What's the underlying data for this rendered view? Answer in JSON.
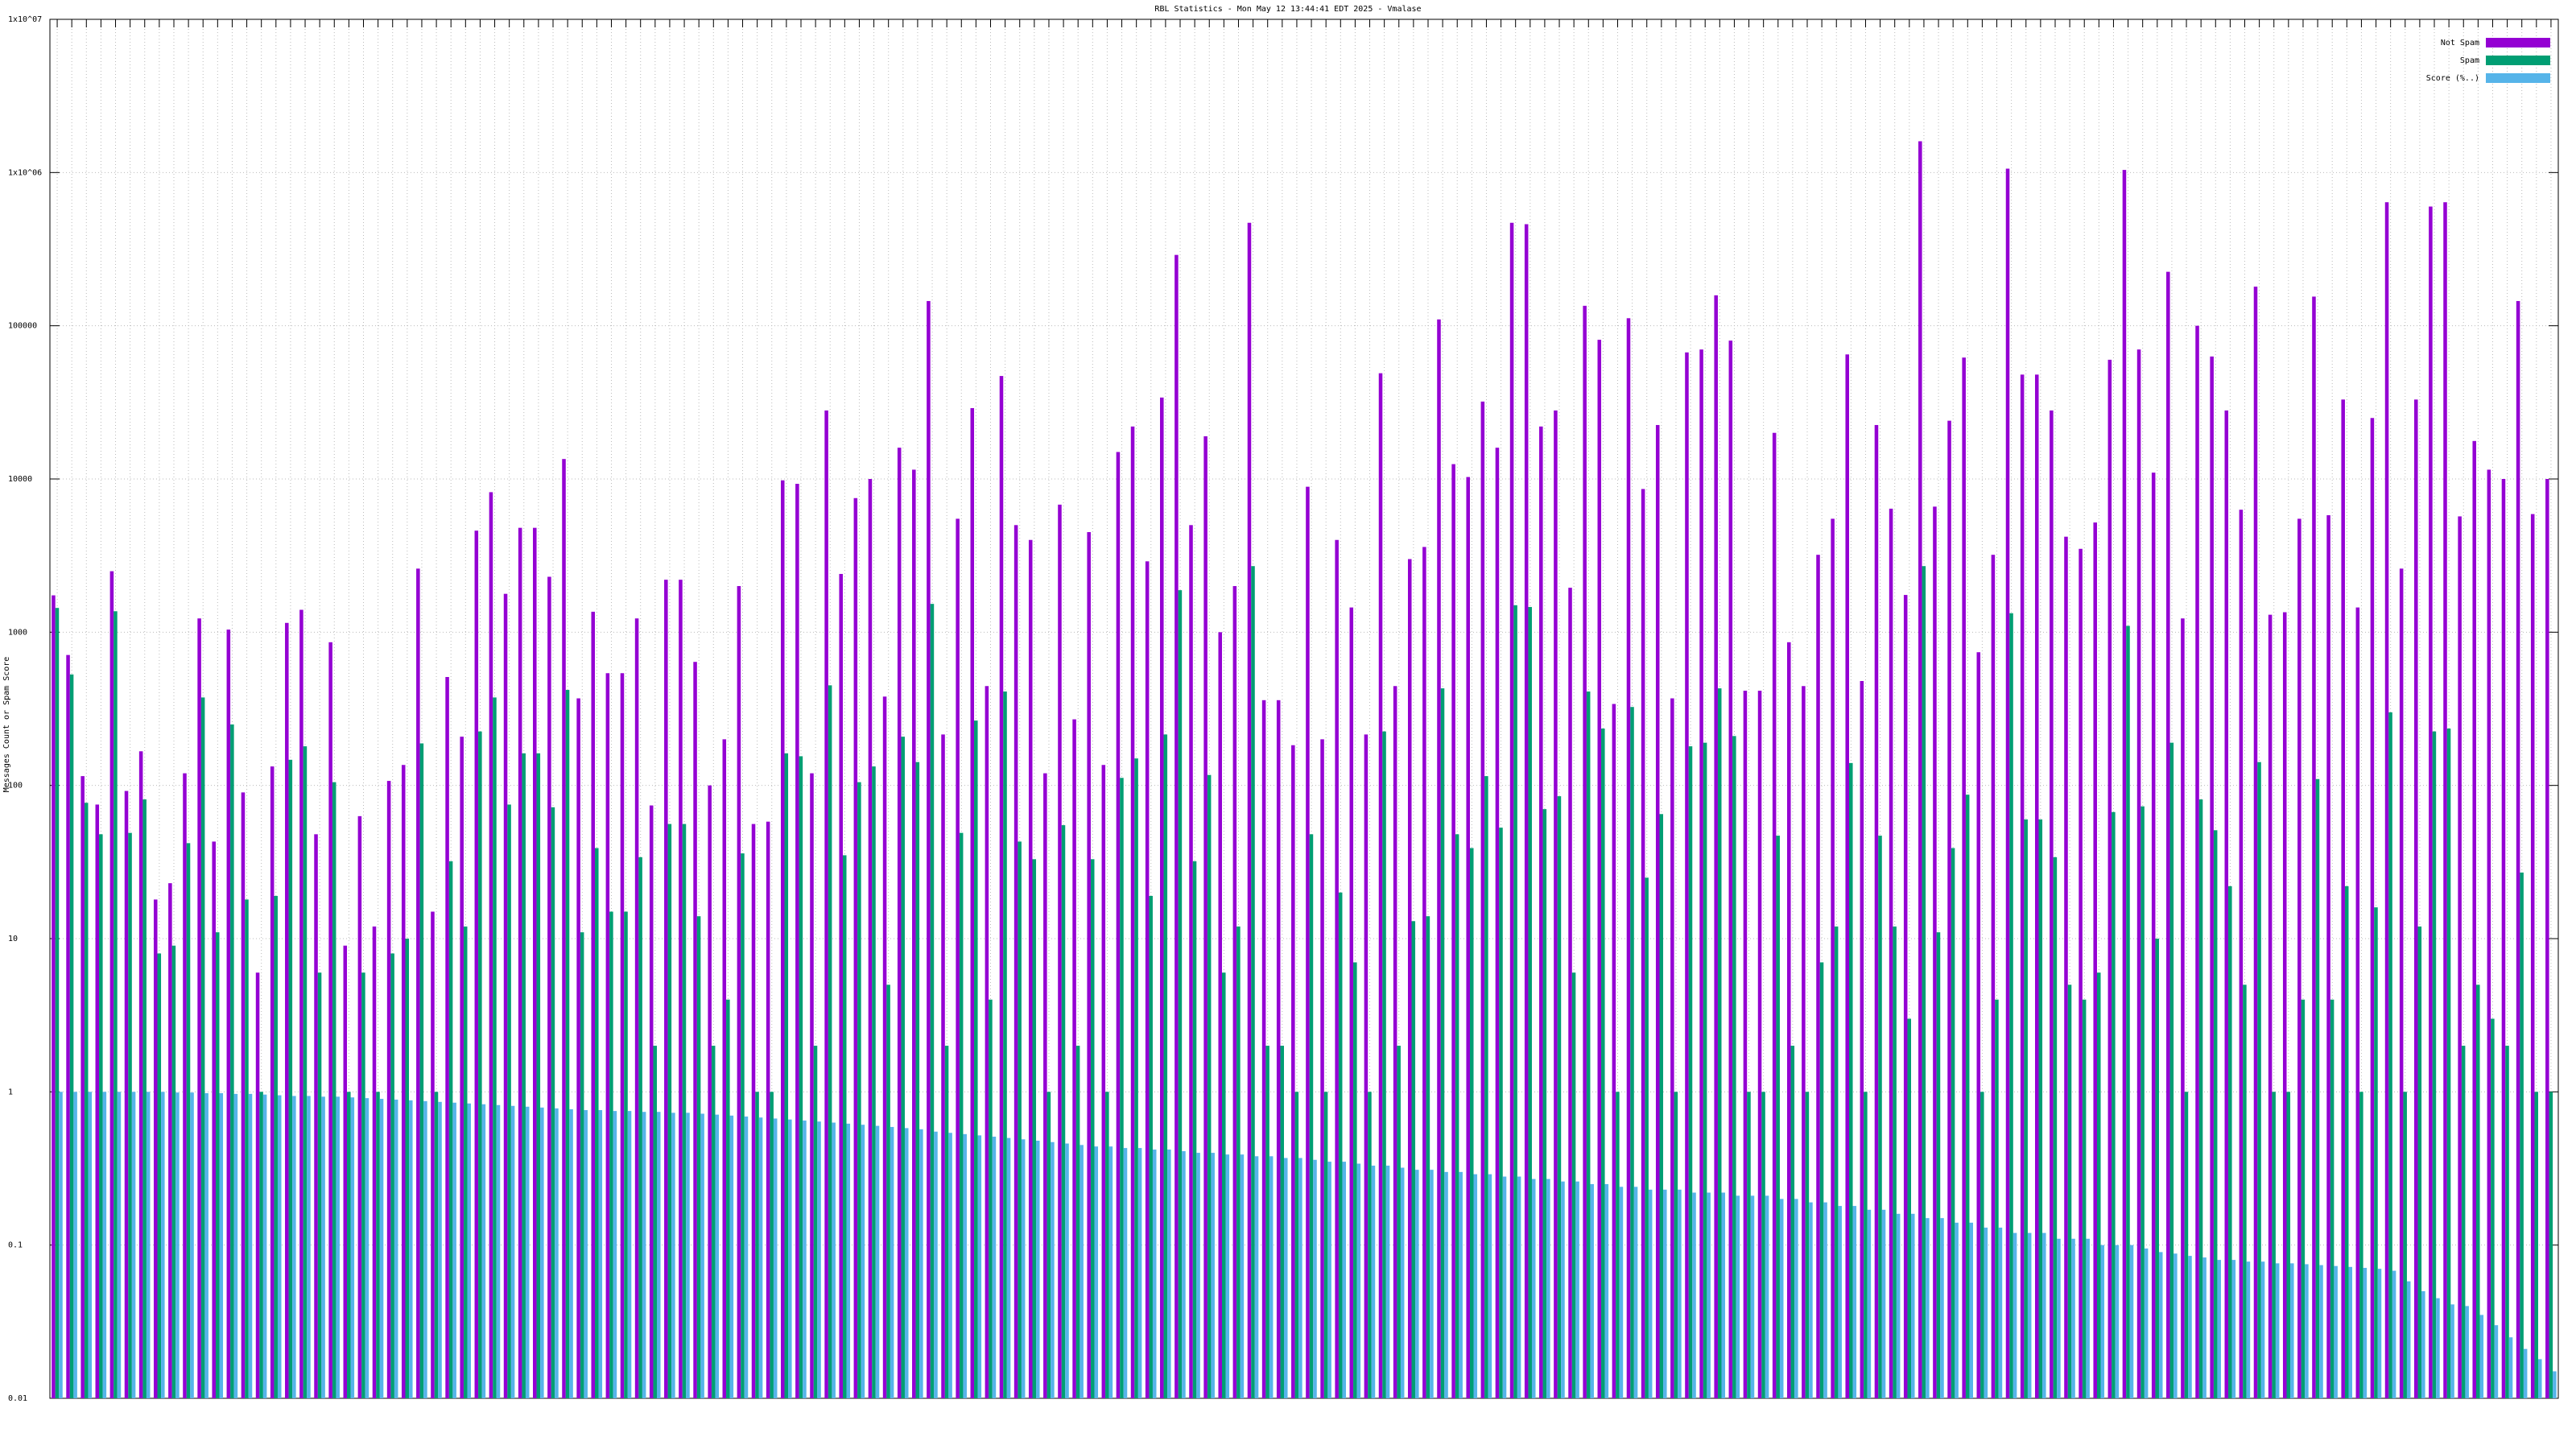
{
  "chart_data": {
    "type": "bar",
    "title": "RBL Statistics - Mon May 12 13:44:41 EDT 2025 - Vmalase",
    "y_label": "Messages Count or Spam Score",
    "log_scale": true,
    "grid": true,
    "legend": "top-right",
    "ylim": [
      0.01,
      10000000
    ],
    "yticks": [
      0.01,
      0.1,
      1,
      10,
      100,
      1000,
      10000,
      100000,
      {
        "value": 1000000,
        "label": "1x10^06"
      },
      {
        "value": 10000000,
        "label": "1x10^07"
      }
    ],
    "categories": [
      null,
      null,
      null,
      null,
      null,
      null,
      null,
      null,
      null,
      null,
      null,
      null,
      null,
      null,
      null,
      null,
      null,
      null,
      null,
      null,
      null,
      null,
      null,
      null,
      null,
      null,
      null,
      null,
      null,
      null,
      null,
      null,
      null,
      null,
      null,
      null,
      null,
      null,
      null,
      null,
      null,
      null,
      null,
      null,
      null,
      null,
      null,
      null,
      null,
      null,
      null,
      null,
      null,
      null,
      null,
      null,
      null,
      null,
      null,
      null,
      null,
      null,
      null,
      null,
      null,
      null,
      null,
      null,
      null,
      null,
      null,
      null,
      null,
      null,
      null,
      null,
      null,
      null,
      null,
      null,
      null,
      null,
      null,
      null,
      null,
      null,
      null,
      null,
      null,
      null,
      null,
      null,
      null,
      null,
      null,
      null,
      null,
      null,
      null,
      null,
      null,
      null,
      null,
      null,
      null,
      null,
      null,
      null,
      null,
      null,
      null,
      null,
      null,
      null,
      null,
      null,
      null,
      null,
      null,
      null,
      null,
      null,
      null,
      null,
      null,
      null,
      null,
      null,
      null,
      null,
      null,
      null,
      null,
      null,
      null,
      null,
      null,
      null,
      null,
      null,
      null,
      null,
      null,
      null,
      null,
      null,
      null,
      null,
      null,
      null,
      null,
      null,
      null,
      null,
      null,
      null,
      null,
      null,
      null,
      null,
      null,
      null,
      null,
      null,
      null,
      null,
      null,
      null,
      null,
      null,
      null,
      null
    ],
    "series": [
      {
        "name": "Not Spam",
        "color": "#9400d3",
        "values": [
          1740,
          710,
          115,
          75,
          2500,
          92,
          167,
          18,
          23,
          120,
          1230,
          43,
          1040,
          90,
          6,
          133,
          1150,
          1400,
          48,
          860,
          9,
          63,
          12,
          107,
          136,
          2600,
          15,
          510,
          208,
          4600,
          8200,
          1780,
          4800,
          4800,
          2300,
          13500,
          370,
          1360,
          540,
          540,
          1230,
          74,
          2200,
          2200,
          640,
          100,
          200,
          2000,
          56,
          58,
          9800,
          9300,
          120,
          28000,
          2400,
          7500,
          10000,
          380,
          16000,
          11500,
          145000,
          215,
          5500,
          29000,
          445,
          47000,
          5000,
          4000,
          120,
          6800,
          270,
          4500,
          136,
          15000,
          22000,
          2900,
          34000,
          290000,
          5000,
          19000,
          1000,
          2000,
          470000,
          360,
          360,
          183,
          8900,
          200,
          4000,
          1450,
          215,
          49000,
          445,
          3000,
          3600,
          110000,
          12500,
          10300,
          32000,
          16000,
          470000,
          460000,
          22000,
          28000,
          1950,
          135000,
          81000,
          340,
          112000,
          8600,
          22500,
          370,
          67000,
          70000,
          158000,
          80000,
          415,
          415,
          20000,
          860,
          445,
          3200,
          5500,
          65000,
          480,
          22500,
          6400,
          1750,
          1600000,
          6600,
          24000,
          62000,
          740,
          3200,
          1060000,
          48000,
          48000,
          28000,
          4200,
          3500,
          5200,
          60000,
          1040000,
          70000,
          11000,
          225000,
          1230,
          100000,
          63000,
          28000,
          6300,
          180000,
          1300,
          1350,
          5500,
          155000,
          5800,
          33000,
          1450,
          25000,
          640000,
          2600,
          33000,
          600000,
          640000,
          5700,
          17700,
          11500,
          10000,
          145000,
          5900,
          10000
        ]
      },
      {
        "name": "Spam",
        "color": "#009e73",
        "values": [
          1440,
          530,
          77,
          48,
          1370,
          49,
          81,
          8,
          9,
          42,
          375,
          11,
          250,
          18,
          1,
          19,
          147,
          180,
          6,
          105,
          1,
          6,
          1,
          8,
          10,
          188,
          1,
          32,
          12,
          225,
          375,
          75,
          162,
          162,
          72,
          420,
          11,
          39,
          15,
          15,
          34,
          2,
          56,
          56,
          14,
          2,
          4,
          36,
          1,
          1,
          162,
          155,
          2,
          450,
          35,
          105,
          133,
          5,
          208,
          142,
          1530,
          2,
          49,
          265,
          4,
          410,
          43,
          33,
          1,
          55,
          2,
          33,
          1,
          112,
          150,
          19,
          215,
          1880,
          32,
          117,
          6,
          12,
          2700,
          2,
          2,
          1,
          48,
          1,
          20,
          7,
          1,
          225,
          2,
          13,
          14,
          430,
          48,
          39,
          115,
          53,
          1500,
          1460,
          70,
          85,
          6,
          410,
          235,
          1,
          325,
          25,
          65,
          1,
          180,
          190,
          430,
          210,
          1,
          1,
          47,
          2,
          1,
          7,
          12,
          140,
          1,
          47,
          12,
          3,
          2700,
          11,
          39,
          87,
          1,
          4,
          1330,
          60,
          60,
          34,
          5,
          4,
          6,
          67,
          1100,
          73,
          10,
          190,
          1,
          81,
          51,
          22,
          5,
          142,
          1,
          1,
          4,
          110,
          4,
          22,
          1,
          16,
          300,
          1,
          12,
          225,
          235,
          2,
          5,
          3,
          2,
          27,
          1,
          1
        ]
      },
      {
        "name": "Score (%..)",
        "color": "#56b4e9",
        "values": [
          1.0,
          1.0,
          1.0,
          1.0,
          1.0,
          1.0,
          1.0,
          1.0,
          0.99,
          0.99,
          0.98,
          0.98,
          0.97,
          0.97,
          0.96,
          0.95,
          0.94,
          0.94,
          0.93,
          0.93,
          0.92,
          0.91,
          0.9,
          0.89,
          0.88,
          0.87,
          0.86,
          0.85,
          0.84,
          0.83,
          0.82,
          0.81,
          0.8,
          0.79,
          0.78,
          0.77,
          0.76,
          0.76,
          0.75,
          0.75,
          0.74,
          0.74,
          0.73,
          0.73,
          0.72,
          0.71,
          0.7,
          0.69,
          0.68,
          0.67,
          0.66,
          0.65,
          0.64,
          0.63,
          0.62,
          0.61,
          0.6,
          0.59,
          0.58,
          0.57,
          0.55,
          0.54,
          0.53,
          0.52,
          0.51,
          0.5,
          0.49,
          0.48,
          0.47,
          0.46,
          0.45,
          0.44,
          0.44,
          0.43,
          0.43,
          0.42,
          0.42,
          0.41,
          0.4,
          0.4,
          0.39,
          0.39,
          0.38,
          0.38,
          0.37,
          0.37,
          0.36,
          0.35,
          0.35,
          0.34,
          0.33,
          0.33,
          0.32,
          0.31,
          0.31,
          0.3,
          0.3,
          0.29,
          0.29,
          0.28,
          0.28,
          0.27,
          0.27,
          0.26,
          0.26,
          0.25,
          0.25,
          0.24,
          0.24,
          0.23,
          0.23,
          0.23,
          0.22,
          0.22,
          0.22,
          0.21,
          0.21,
          0.21,
          0.2,
          0.2,
          0.19,
          0.19,
          0.18,
          0.18,
          0.17,
          0.17,
          0.16,
          0.16,
          0.15,
          0.15,
          0.14,
          0.14,
          0.13,
          0.13,
          0.12,
          0.12,
          0.12,
          0.11,
          0.11,
          0.11,
          0.1,
          0.1,
          0.1,
          0.095,
          0.09,
          0.088,
          0.085,
          0.083,
          0.08,
          0.08,
          0.078,
          0.078,
          0.076,
          0.076,
          0.075,
          0.074,
          0.073,
          0.072,
          0.071,
          0.07,
          0.068,
          0.058,
          0.05,
          0.045,
          0.041,
          0.04,
          0.035,
          0.03,
          0.025,
          0.021,
          0.018,
          0.015
        ]
      }
    ]
  }
}
